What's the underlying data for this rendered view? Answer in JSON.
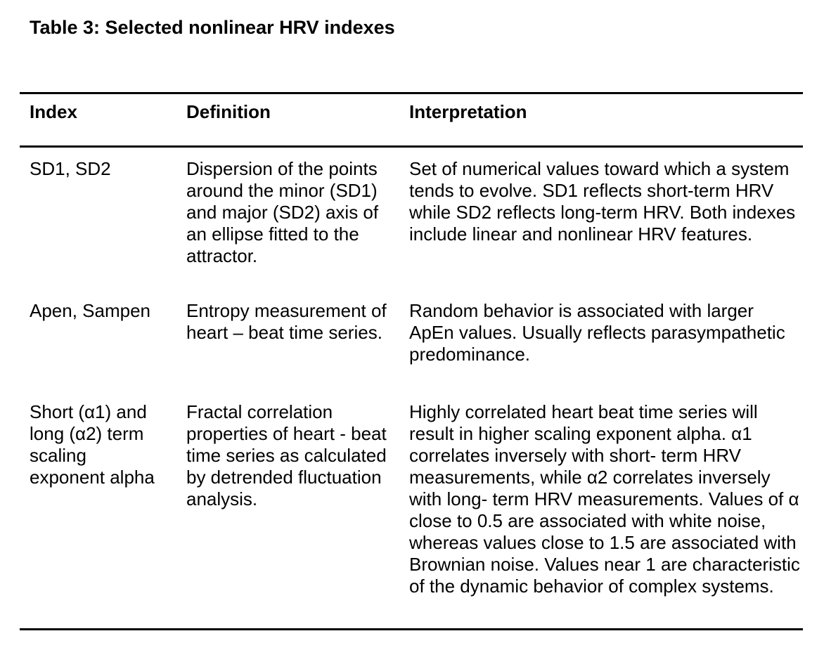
{
  "title": "Table 3: Selected nonlinear HRV indexes",
  "table": {
    "headers": [
      "Index",
      "Definition",
      "Interpretation"
    ],
    "rows": [
      {
        "index": "SD1, SD2",
        "definition": "Dispersion of the points around the minor (SD1) and major (SD2) axis of an ellipse fitted to the attractor.",
        "interpretation": "Set of numerical values toward which a system tends to evolve. SD1 reflects short-term HRV while SD2 reflects long-term HRV. Both indexes include linear and nonlinear HRV features."
      },
      {
        "index": "Apen, Sampen",
        "definition": "Entropy measurement of heart – beat time series.",
        "interpretation": "Random behavior is associated with larger ApEn values. Usually reflects parasympathetic predominance."
      },
      {
        "index": "Short (α1) and long (α2) term scaling exponent alpha",
        "definition": "Fractal correlation properties of heart - beat time series as calculated by detrended fluctuation analysis.",
        "interpretation": "Highly correlated heart beat time series will result in higher scaling exponent alpha. α1 correlates inversely with short- term HRV measurements, while α2 correlates inversely with long- term HRV measurements. Values of α close to 0.5 are associated with white noise, whereas values close to 1.5 are associated with Brownian noise. Values near 1 are characteristic of the dynamic behavior of complex systems."
      }
    ]
  },
  "colors": {
    "text": "#000000",
    "background": "#ffffff",
    "rule": "#000000"
  }
}
